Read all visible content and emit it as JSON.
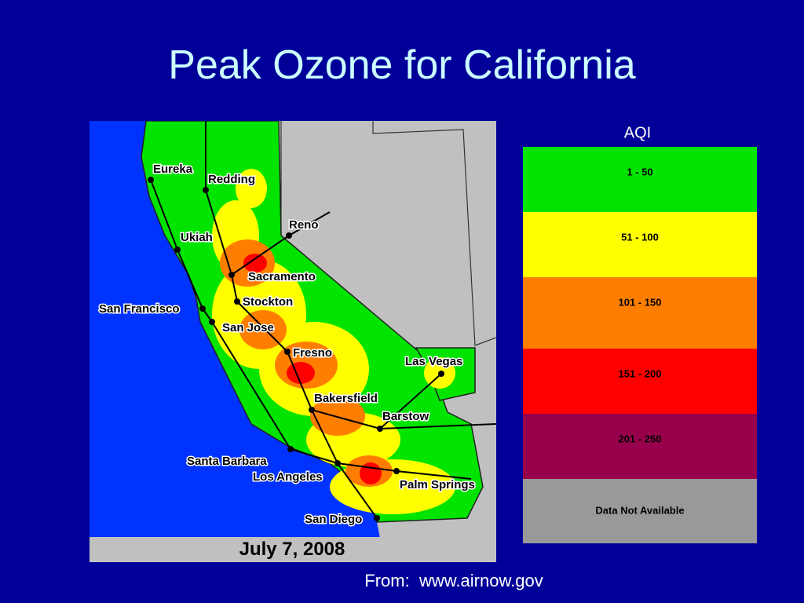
{
  "title": "Peak Ozone for California",
  "map": {
    "date": "July 7, 2008",
    "cities": [
      "Eureka",
      "Redding",
      "Reno",
      "Ukiah",
      "Sacramento",
      "Stockton",
      "San Francisco",
      "San Jose",
      "Fresno",
      "Las Vegas",
      "Bakersfield",
      "Barstow",
      "Santa Barbara",
      "Los Angeles",
      "Palm Springs",
      "San Diego"
    ]
  },
  "legend": {
    "title": "AQI",
    "items": [
      {
        "label": "1 - 50",
        "color": "#00e400"
      },
      {
        "label": "51 - 100",
        "color": "#ffff00"
      },
      {
        "label": "101 - 150",
        "color": "#ff7e00"
      },
      {
        "label": "151 - 200",
        "color": "#ff0000"
      },
      {
        "label": "201 - 250",
        "color": "#99004c"
      },
      {
        "label": "Data Not Available",
        "color": "#999999"
      }
    ]
  },
  "source": "From:  www.airnow.gov"
}
